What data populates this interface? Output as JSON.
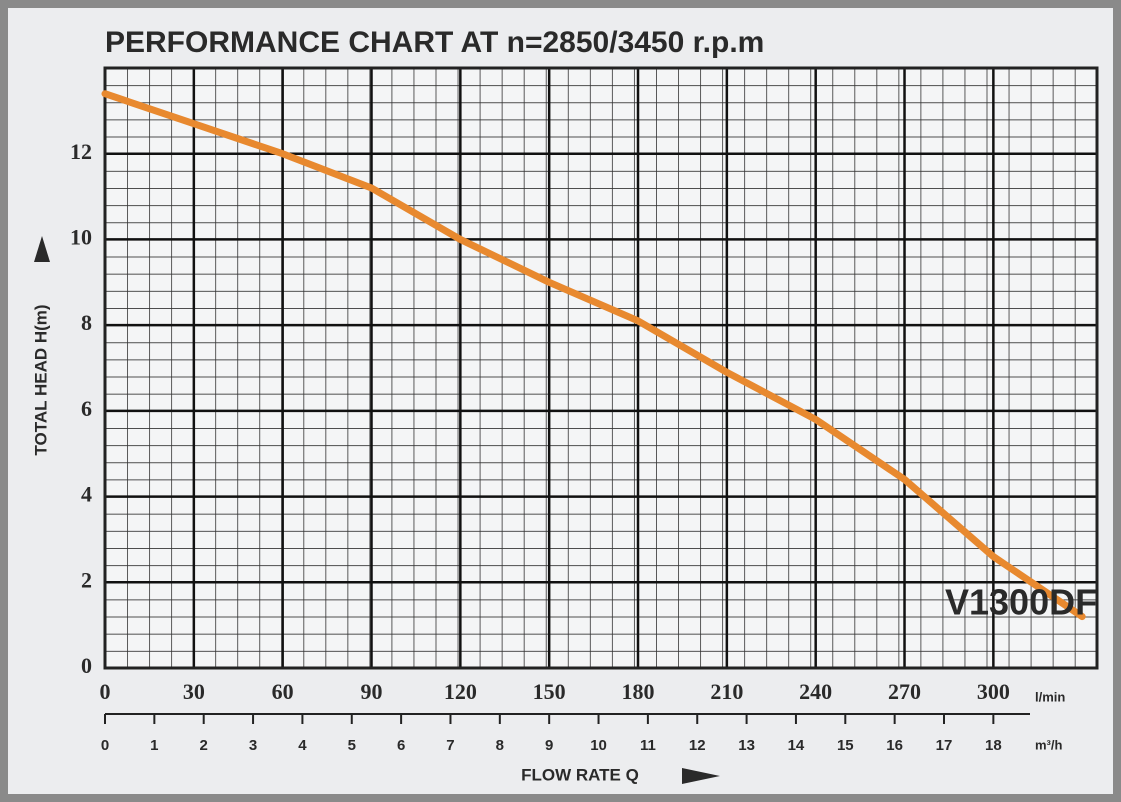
{
  "chart_data": {
    "type": "line",
    "title": "PERFORMANCE CHART AT n=2850/3450 r.p.m",
    "y_label": "TOTAL HEAD H(m)",
    "x_label": "FLOW RATE Q",
    "x_unit": "l/min",
    "x2_unit": "m³/h",
    "annotation": "V1300DF",
    "x": [
      0,
      30,
      60,
      90,
      120,
      150,
      180,
      210,
      240,
      270,
      300,
      330
    ],
    "series": [
      {
        "name": "V1300DF",
        "color": "#e8892f",
        "values": [
          13.4,
          12.7,
          12.0,
          11.2,
          10.0,
          9.0,
          8.1,
          6.9,
          5.8,
          4.4,
          2.6,
          1.2
        ]
      }
    ],
    "xlim": [
      0,
      335
    ],
    "xticks": [
      0,
      30,
      60,
      90,
      120,
      150,
      180,
      210,
      240,
      270,
      300
    ],
    "x2lim": [
      0,
      20.1
    ],
    "x2ticks": [
      0,
      1,
      2,
      3,
      4,
      5,
      6,
      7,
      8,
      9,
      10,
      11,
      12,
      13,
      14,
      15,
      16,
      17,
      18
    ],
    "ylim": [
      0,
      14
    ],
    "yticks": [
      0,
      2,
      4,
      6,
      8,
      10,
      12
    ],
    "grid": true
  }
}
